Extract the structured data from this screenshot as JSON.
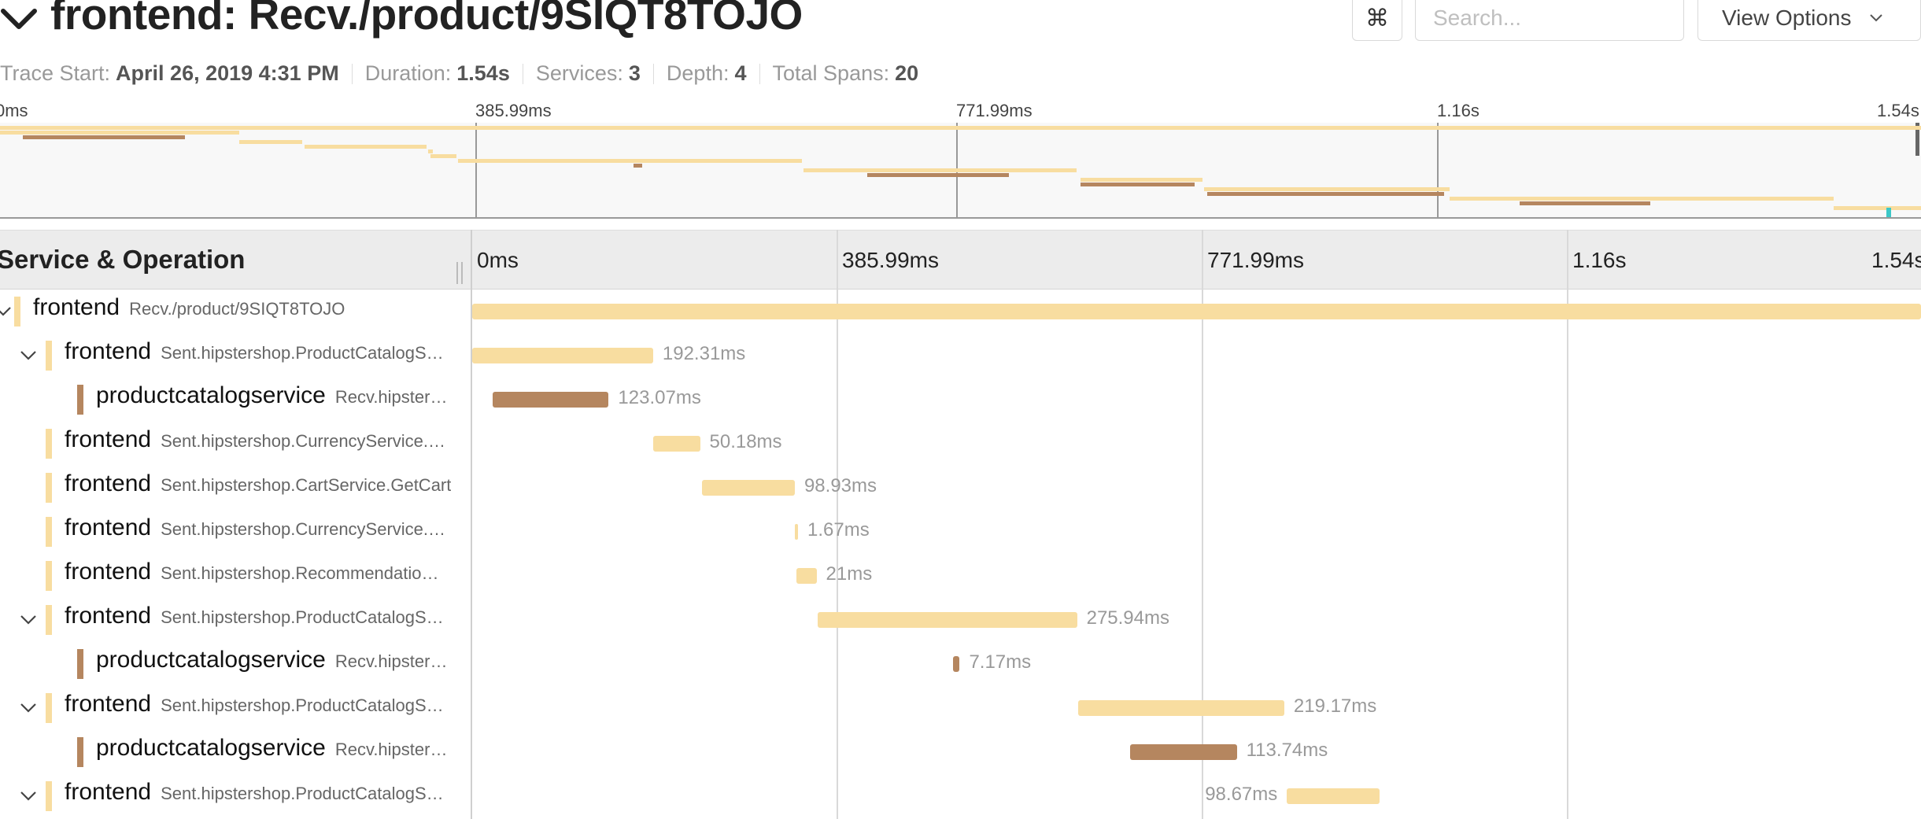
{
  "header": {
    "title": "frontend: Recv./product/9SIQT8TOJO",
    "kbd_glyph": "⌘",
    "search_placeholder": "Search...",
    "view_options_label": "View Options"
  },
  "meta": [
    {
      "label": "Trace Start:",
      "value": "April 26, 2019 4:31 PM"
    },
    {
      "label": "Duration:",
      "value": "1.54s"
    },
    {
      "label": "Services:",
      "value": "3"
    },
    {
      "label": "Depth:",
      "value": "4"
    },
    {
      "label": "Total Spans:",
      "value": "20"
    }
  ],
  "ticks": [
    "0ms",
    "385.99ms",
    "771.99ms",
    "1.16s",
    "1.54s"
  ],
  "column_title": "Service & Operation",
  "colors": {
    "frontend": "#f8dda0",
    "productcatalogservice": "#b5865f",
    "accent": "#3cc8c8"
  },
  "rows": [
    {
      "depth": 0,
      "expander": "down",
      "service": "frontend",
      "operation": "Recv./product/9SIQT8TOJO",
      "start_ms": 0,
      "duration_ms": 1540,
      "label": ""
    },
    {
      "depth": 1,
      "expander": "down",
      "service": "frontend",
      "operation": "Sent.hipstershop.ProductCatalogS…",
      "start_ms": 0,
      "duration_ms": 192.31,
      "label": "192.31ms"
    },
    {
      "depth": 2,
      "expander": "",
      "service": "productcatalogservice",
      "operation": "Recv.hipster…",
      "start_ms": 22,
      "duration_ms": 123.07,
      "label": "123.07ms"
    },
    {
      "depth": 1,
      "expander": "",
      "service": "frontend",
      "operation": "Sent.hipstershop.CurrencyService.…",
      "start_ms": 192,
      "duration_ms": 50.18,
      "label": "50.18ms"
    },
    {
      "depth": 1,
      "expander": "",
      "service": "frontend",
      "operation": "Sent.hipstershop.CartService.GetCart",
      "start_ms": 244,
      "duration_ms": 98.93,
      "label": "98.93ms"
    },
    {
      "depth": 1,
      "expander": "",
      "service": "frontend",
      "operation": "Sent.hipstershop.CurrencyService.…",
      "start_ms": 343,
      "duration_ms": 1.67,
      "label": "1.67ms"
    },
    {
      "depth": 1,
      "expander": "",
      "service": "frontend",
      "operation": "Sent.hipstershop.Recommendatio…",
      "start_ms": 345,
      "duration_ms": 21,
      "label": "21ms"
    },
    {
      "depth": 1,
      "expander": "down",
      "service": "frontend",
      "operation": "Sent.hipstershop.ProductCatalogS…",
      "start_ms": 367,
      "duration_ms": 275.94,
      "label": "275.94ms"
    },
    {
      "depth": 2,
      "expander": "",
      "service": "productcatalogservice",
      "operation": "Recv.hipster…",
      "start_ms": 511,
      "duration_ms": 7.17,
      "label": "7.17ms"
    },
    {
      "depth": 1,
      "expander": "down",
      "service": "frontend",
      "operation": "Sent.hipstershop.ProductCatalogS…",
      "start_ms": 644,
      "duration_ms": 219.17,
      "label": "219.17ms"
    },
    {
      "depth": 2,
      "expander": "",
      "service": "productcatalogservice",
      "operation": "Recv.hipster…",
      "start_ms": 699,
      "duration_ms": 113.74,
      "label": "113.74ms"
    },
    {
      "depth": 1,
      "expander": "down",
      "service": "frontend",
      "operation": "Sent.hipstershop.ProductCatalogS…",
      "start_ms": 866,
      "duration_ms": 98.67,
      "label": "98.67ms",
      "label_side": "left"
    }
  ],
  "minimap_spans": [
    {
      "start_ms": 0,
      "duration_ms": 1540,
      "service": "frontend"
    },
    {
      "start_ms": 0,
      "duration_ms": 192,
      "service": "frontend"
    },
    {
      "start_ms": 18,
      "duration_ms": 130,
      "service": "productcatalogservice"
    },
    {
      "start_ms": 192,
      "duration_ms": 50,
      "service": "frontend"
    },
    {
      "start_ms": 244,
      "duration_ms": 98,
      "service": "frontend"
    },
    {
      "start_ms": 343,
      "duration_ms": 4,
      "service": "frontend"
    },
    {
      "start_ms": 345,
      "duration_ms": 21,
      "service": "frontend"
    },
    {
      "start_ms": 367,
      "duration_ms": 276,
      "service": "frontend"
    },
    {
      "start_ms": 508,
      "duration_ms": 7,
      "service": "productcatalogservice"
    },
    {
      "start_ms": 644,
      "duration_ms": 219,
      "service": "frontend"
    },
    {
      "start_ms": 695,
      "duration_ms": 114,
      "service": "productcatalogservice"
    },
    {
      "start_ms": 866,
      "duration_ms": 98,
      "service": "frontend"
    },
    {
      "start_ms": 866,
      "duration_ms": 92,
      "service": "productcatalogservice"
    },
    {
      "start_ms": 965,
      "duration_ms": 197,
      "service": "frontend"
    },
    {
      "start_ms": 968,
      "duration_ms": 190,
      "service": "productcatalogservice"
    },
    {
      "start_ms": 1162,
      "duration_ms": 308,
      "service": "frontend"
    },
    {
      "start_ms": 1218,
      "duration_ms": 105,
      "service": "productcatalogservice"
    },
    {
      "start_ms": 1470,
      "duration_ms": 70,
      "service": "frontend"
    },
    {
      "start_ms": 1512,
      "duration_ms": 4,
      "service": "accent"
    }
  ],
  "trace_duration_ms": 1540
}
